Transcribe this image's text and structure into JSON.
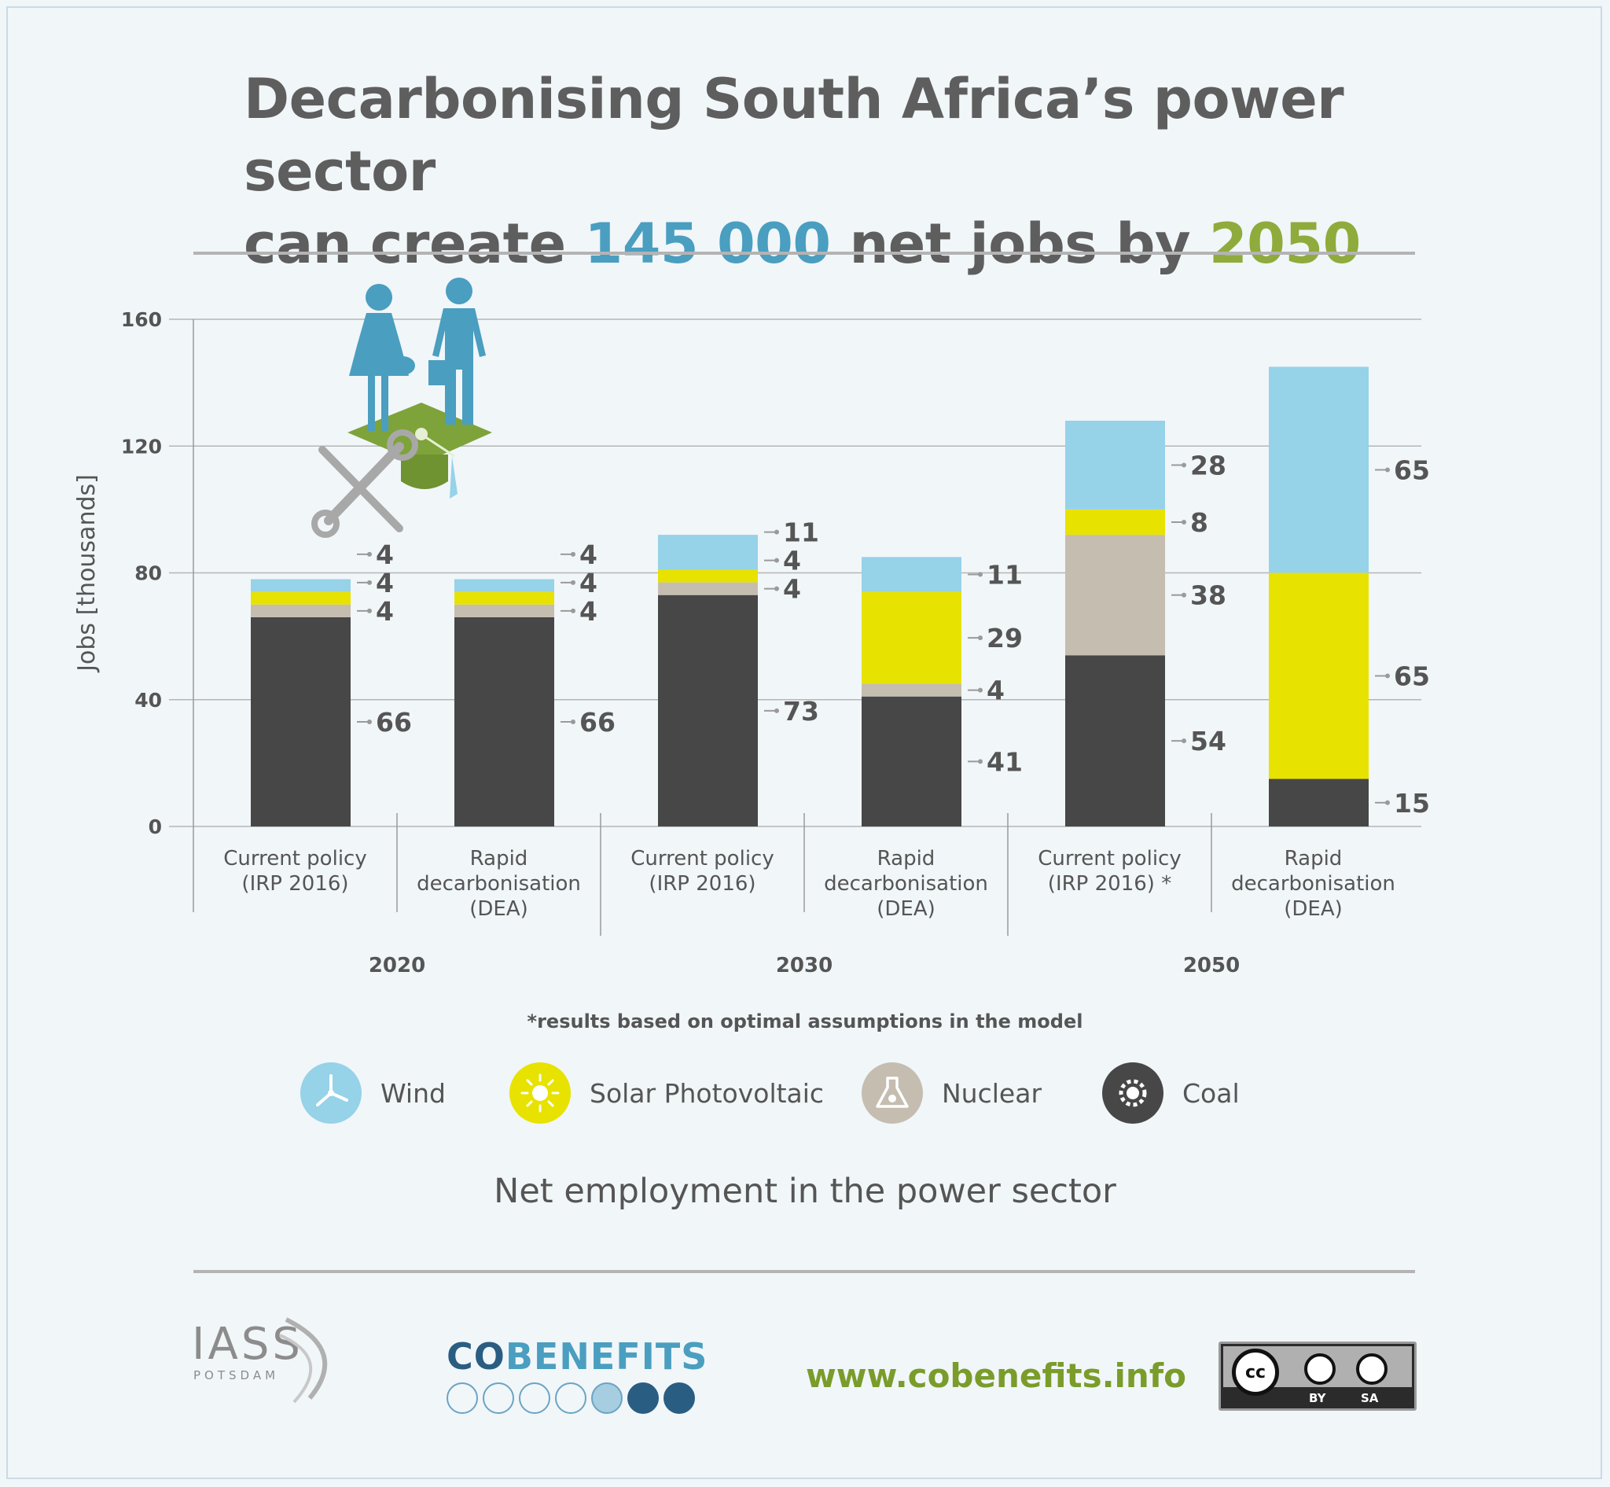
{
  "header": {
    "title_line1": "Decarbonising South Africa’s power sector",
    "title_pre": "can create ",
    "title_jobs": "145 000",
    "title_mid": " net jobs by ",
    "title_year": "2050"
  },
  "chart_data": {
    "type": "bar",
    "stacked": true,
    "ylabel": "Jobs [thousands]",
    "ylim": [
      0,
      160
    ],
    "yticks": [
      0,
      40,
      80,
      120,
      160
    ],
    "groups": [
      "2020",
      "2030",
      "2050"
    ],
    "categories": [
      "Current policy\n(IRP 2016)",
      "Rapid\ndecarbonisation\n(DEA)",
      "Current policy\n(IRP 2016)",
      "Rapid\ndecarbonisation\n(DEA)",
      "Current policy\n(IRP 2016) *",
      "Rapid\ndecarbonisation\n(DEA)"
    ],
    "series": [
      {
        "name": "Coal",
        "color": "#474747",
        "values": [
          66,
          66,
          73,
          41,
          54,
          15
        ]
      },
      {
        "name": "Nuclear",
        "color": "#c5bdb0",
        "values": [
          4,
          4,
          4,
          4,
          38,
          0
        ]
      },
      {
        "name": "Solar Photovoltaic",
        "color": "#e8e200",
        "values": [
          4,
          4,
          4,
          29,
          8,
          65
        ]
      },
      {
        "name": "Wind",
        "color": "#96d2e8",
        "values": [
          4,
          4,
          11,
          11,
          28,
          65
        ]
      }
    ],
    "data_labels": [
      [
        "66",
        "4",
        "4",
        "4"
      ],
      [
        "66",
        "4",
        "4",
        "4"
      ],
      [
        "73",
        "4",
        "4",
        "11"
      ],
      [
        "41",
        "4",
        "29",
        "11"
      ],
      [
        "54",
        "38",
        "8",
        "28"
      ],
      [
        "15",
        "",
        "65",
        "65"
      ]
    ],
    "grid": true
  },
  "footnote": "*results based on optimal assumptions in the model",
  "legend": [
    {
      "label": "Wind",
      "icon": "wind-turbine-icon",
      "color": "#96d2e8"
    },
    {
      "label": "Solar Photovoltaic",
      "icon": "sun-icon",
      "color": "#e8e200"
    },
    {
      "label": "Nuclear",
      "icon": "nuclear-flask-icon",
      "color": "#c5bdb0"
    },
    {
      "label": "Coal",
      "icon": "coal-gear-icon",
      "color": "#474747"
    }
  ],
  "subtitle": "Net employment in the power sector",
  "footer": {
    "iass_name": "IASS",
    "iass_sub": "POTSDAM",
    "cob_part1": "CO",
    "cob_part2": "BENEFITS",
    "url": "www.cobenefits.info",
    "license_cc": "cc",
    "license_by": "BY",
    "license_sa": "SA"
  }
}
